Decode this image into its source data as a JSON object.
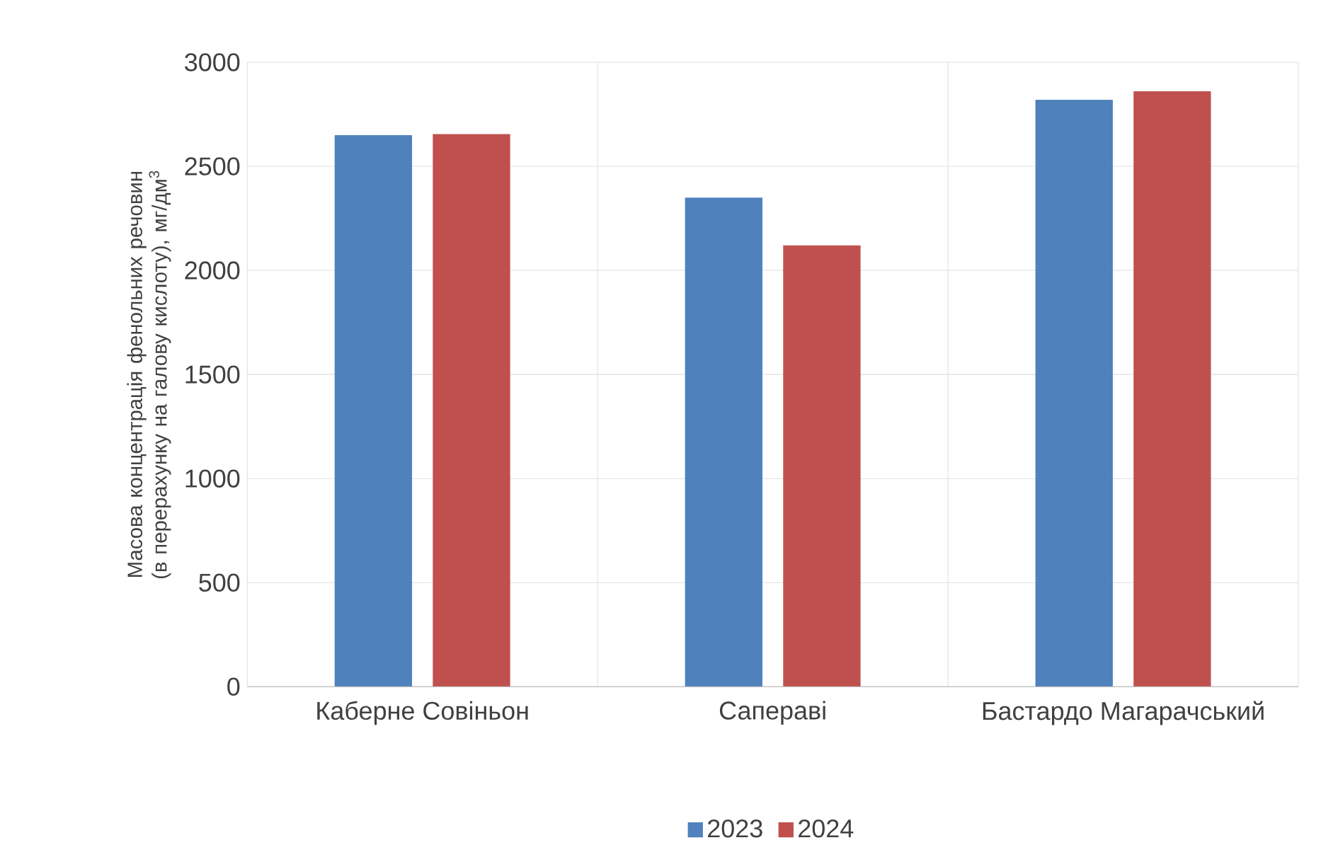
{
  "chart_data": {
    "type": "bar",
    "ylabel": "Масова концентрація фенольних речовин (в перерахунку на галову кислоту), мг/дм$^{3}$",
    "categories": [
      "Каберне Совіньон",
      "Сапераві",
      "Бастардо Магарачський"
    ],
    "series": [
      {
        "name": "2023",
        "color": "#4f81bd",
        "values": [
          2650,
          2350,
          2820
        ]
      },
      {
        "name": "2024",
        "color": "#c0504d",
        "values": [
          2655,
          2120,
          2860
        ]
      }
    ],
    "ylim": [
      0,
      3000
    ],
    "yticks": [
      0,
      500,
      1000,
      1500,
      2000,
      2500,
      3000
    ],
    "grid": true,
    "legend": "bottom"
  }
}
